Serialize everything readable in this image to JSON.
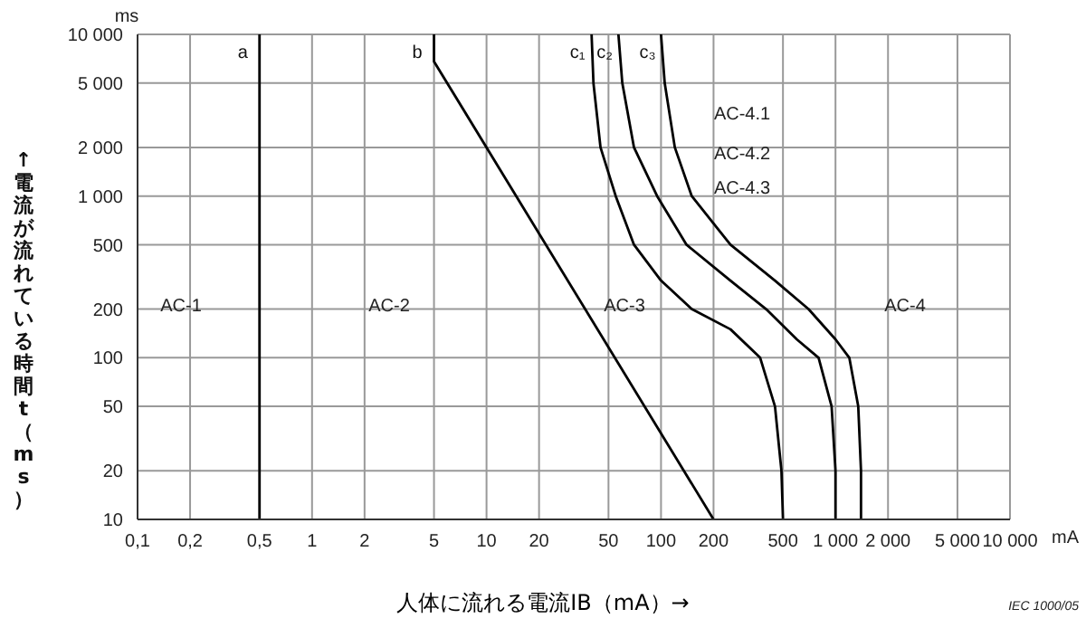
{
  "chart_data": {
    "type": "line",
    "xlabel": "人体に流れる電流IB（mA）→",
    "ylabel": "↑ 電流が流れている時間 t（ms）",
    "log": "xy",
    "grid": true,
    "marker": "none",
    "line_style": "solid",
    "xlim": [
      0.1,
      10000
    ],
    "ylim": [
      10,
      10000
    ],
    "xticks": [
      {
        "value": 0.1,
        "label": "0,1"
      },
      {
        "value": 0.2,
        "label": "0,2"
      },
      {
        "value": 0.5,
        "label": "0,5"
      },
      1,
      2,
      5,
      10,
      20,
      50,
      100,
      200,
      500,
      {
        "value": 1000,
        "label": "1 000"
      },
      {
        "value": 2000,
        "label": "2 000"
      },
      {
        "value": 5000,
        "label": "5 000"
      },
      {
        "value": 10000,
        "label": "10 000"
      }
    ],
    "yticks": [
      10,
      20,
      50,
      100,
      200,
      500,
      {
        "value": 1000,
        "label": "1 000"
      },
      {
        "value": 2000,
        "label": "2 000"
      },
      {
        "value": 5000,
        "label": "5 000"
      },
      {
        "value": 10000,
        "label": "10 000"
      }
    ],
    "series": [
      {
        "name": "a",
        "color": "#000000",
        "x": [
          0.5,
          0.5
        ],
        "values": [
          10000,
          10
        ]
      },
      {
        "name": "b",
        "color": "#000000",
        "x": [
          5,
          5,
          200
        ],
        "values": [
          10000,
          6800,
          10
        ]
      },
      {
        "name": "c₁",
        "color": "#000000",
        "x": [
          40,
          41,
          45,
          55,
          70,
          100,
          150,
          250,
          370,
          450,
          490,
          500
        ],
        "values": [
          10000,
          5000,
          2000,
          1000,
          500,
          300,
          200,
          150,
          100,
          50,
          20,
          10
        ]
      },
      {
        "name": "c₂",
        "color": "#000000",
        "x": [
          57,
          60,
          70,
          95,
          140,
          250,
          400,
          600,
          800,
          950,
          1000,
          1000
        ],
        "values": [
          10000,
          5000,
          2000,
          1000,
          500,
          300,
          200,
          130,
          100,
          50,
          20,
          10
        ]
      },
      {
        "name": "c₃",
        "color": "#000000",
        "x": [
          100,
          105,
          120,
          150,
          250,
          450,
          700,
          1000,
          1200,
          1350,
          1400,
          1400
        ],
        "values": [
          10000,
          5000,
          2000,
          1000,
          500,
          300,
          200,
          130,
          100,
          50,
          20,
          10
        ]
      }
    ],
    "annotations": [
      "AC-1",
      "AC-2",
      "AC-3",
      "AC-4",
      "AC-4.1",
      "AC-4.2",
      "AC-4.3",
      "ms",
      "mA",
      "IEC 1000/05"
    ]
  }
}
